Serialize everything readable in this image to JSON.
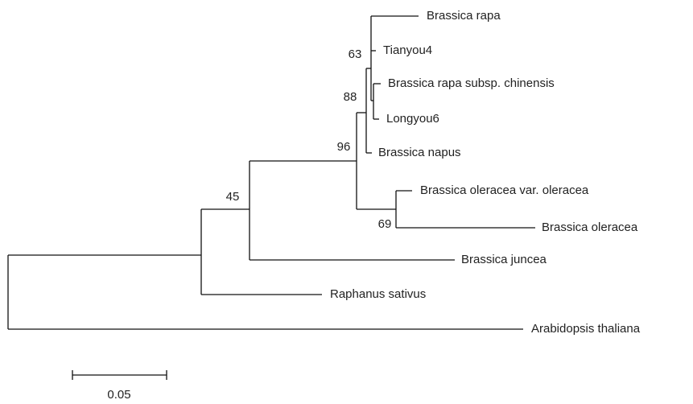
{
  "tree": {
    "leaves": [
      "Brassica rapa",
      "Tianyou4",
      "Brassica rapa subsp. chinensis",
      "Longyou6",
      "Brassica napus",
      "Brassica oleracea var. oleracea",
      "Brassica oleracea",
      "Brassica juncea",
      "Raphanus sativus",
      "Arabidopsis thaliana"
    ],
    "bootstrap": [
      "63",
      "88",
      "96",
      "45",
      "69"
    ],
    "scale_bar": "0.05"
  }
}
